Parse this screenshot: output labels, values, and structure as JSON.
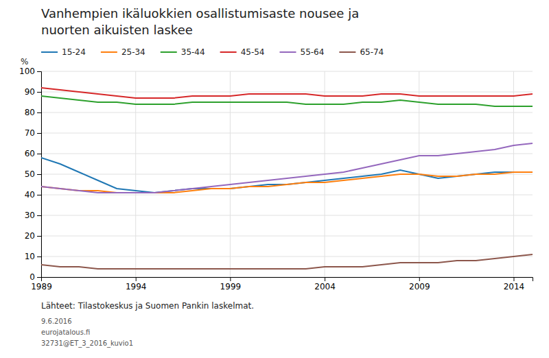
{
  "chart_data": {
    "type": "line",
    "title": "Vanhempien ikäluokkien osallistumisaste nousee ja",
    "subtitle": "nuorten aikuisten laskee",
    "y_label": "%",
    "x": [
      1989,
      1990,
      1991,
      1992,
      1993,
      1994,
      1995,
      1996,
      1997,
      1998,
      1999,
      2000,
      2001,
      2002,
      2003,
      2004,
      2005,
      2006,
      2007,
      2008,
      2009,
      2010,
      2011,
      2012,
      2013,
      2014,
      2015
    ],
    "series": [
      {
        "name": "15-24",
        "values": [
          58,
          55,
          51,
          47,
          43,
          42,
          41,
          42,
          43,
          43,
          43,
          44,
          45,
          45,
          46,
          47,
          48,
          49,
          50,
          52,
          50,
          48,
          49,
          50,
          51,
          51,
          51
        ]
      },
      {
        "name": "25-34",
        "values": [
          44,
          43,
          42,
          42,
          41,
          41,
          41,
          41,
          42,
          43,
          43,
          44,
          44,
          45,
          46,
          46,
          47,
          48,
          49,
          50,
          50,
          49,
          49,
          50,
          50,
          51,
          51
        ]
      },
      {
        "name": "35-44",
        "values": [
          88,
          87,
          86,
          85,
          85,
          84,
          84,
          84,
          85,
          85,
          85,
          85,
          85,
          85,
          84,
          84,
          84,
          85,
          85,
          86,
          85,
          84,
          84,
          84,
          83,
          83,
          83
        ]
      },
      {
        "name": "45-54",
        "values": [
          92,
          91,
          90,
          89,
          88,
          87,
          87,
          87,
          88,
          88,
          88,
          89,
          89,
          89,
          89,
          88,
          88,
          88,
          89,
          89,
          88,
          88,
          88,
          88,
          88,
          88,
          89
        ]
      },
      {
        "name": "55-64",
        "values": [
          44,
          43,
          42,
          41,
          41,
          41,
          41,
          42,
          43,
          44,
          45,
          46,
          47,
          48,
          49,
          50,
          51,
          53,
          55,
          57,
          59,
          59,
          60,
          61,
          62,
          64,
          65
        ]
      },
      {
        "name": "65-74",
        "values": [
          6,
          5,
          5,
          4,
          4,
          4,
          4,
          4,
          4,
          4,
          4,
          4,
          4,
          4,
          4,
          5,
          5,
          5,
          6,
          7,
          7,
          7,
          8,
          8,
          9,
          10,
          11
        ]
      }
    ],
    "xlim": [
      1989,
      2015
    ],
    "xticks": [
      1989,
      1994,
      1999,
      2004,
      2009,
      2014
    ],
    "ylim": [
      0,
      100
    ],
    "yticks": [
      0,
      10,
      20,
      30,
      40,
      50,
      60,
      70,
      80,
      90,
      100
    ],
    "grid": true,
    "legend": "top",
    "annotations": [
      "Lähteet:  Tilastokeskus ja Suomen Pankin laskelmat.",
      "9.6.2016",
      "eurojatalous.fi",
      "32731@ET_3_2016_kuvio1"
    ]
  }
}
